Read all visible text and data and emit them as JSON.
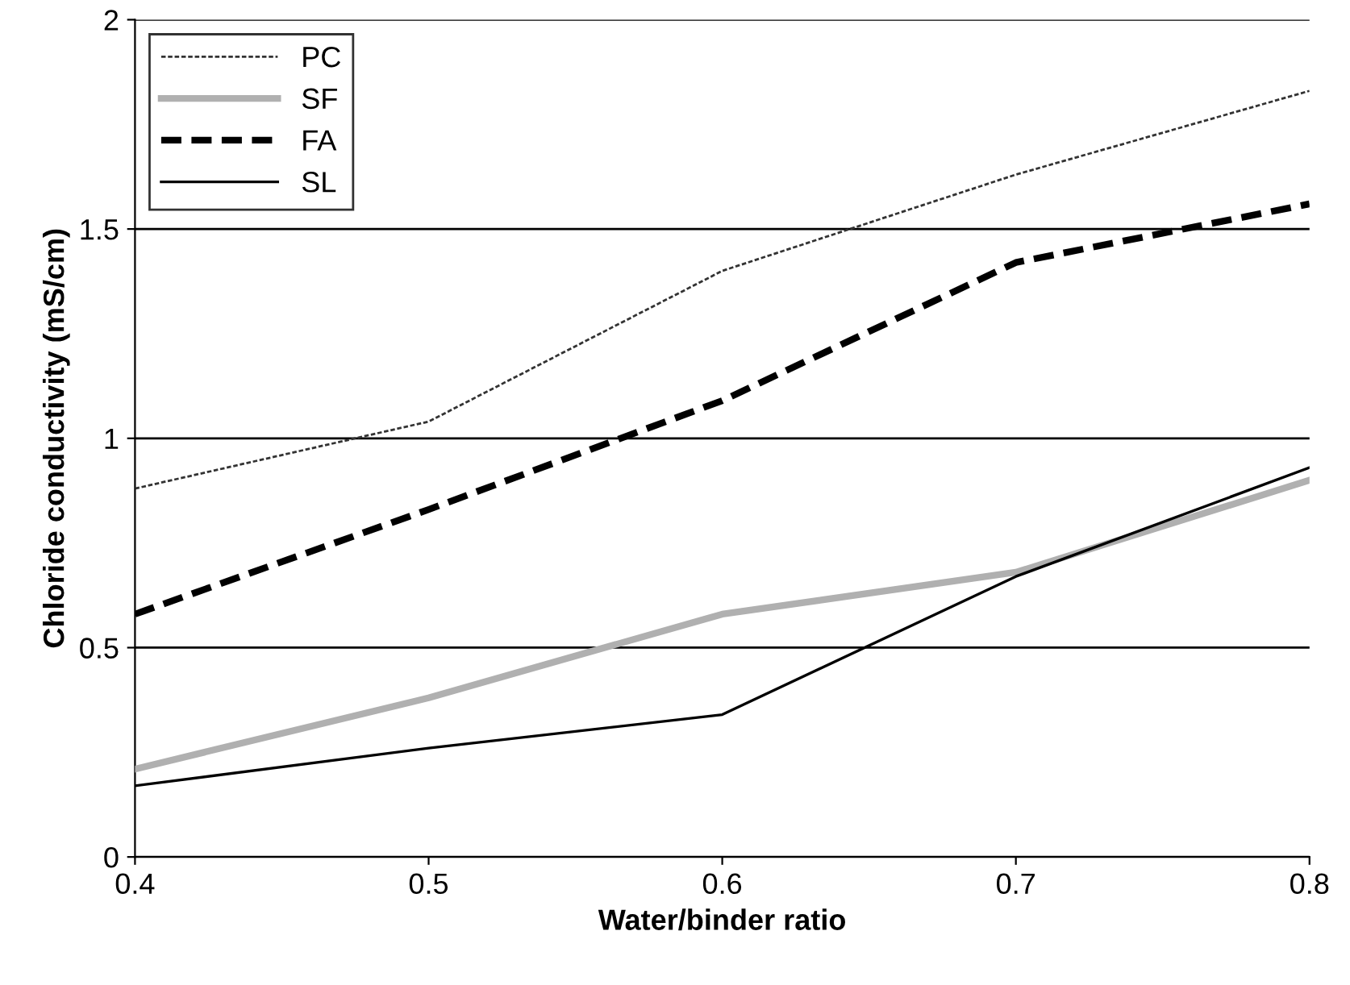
{
  "chart_data": {
    "type": "line",
    "xlabel": "Water/binder ratio",
    "ylabel": "Chloride conductivity (mS/cm)",
    "x": [
      0.4,
      0.5,
      0.6,
      0.7,
      0.8
    ],
    "series": [
      {
        "name": "PC",
        "color": "#333333",
        "values": [
          0.88,
          1.04,
          1.4,
          1.63,
          1.83
        ],
        "line_style": "dotted"
      },
      {
        "name": "SF",
        "color": "#b0b0b0",
        "values": [
          0.21,
          0.38,
          0.58,
          0.68,
          0.9
        ],
        "line_style": "solid"
      },
      {
        "name": "FA",
        "color": "#000000",
        "values": [
          0.58,
          0.83,
          1.09,
          1.42,
          1.56
        ],
        "line_style": "dashed"
      },
      {
        "name": "SL",
        "color": "#000000",
        "values": [
          0.17,
          0.26,
          0.34,
          0.67,
          0.93
        ],
        "line_style": "solid"
      }
    ],
    "xlim": [
      0.4,
      0.8
    ],
    "xticks": [
      0.4,
      0.5,
      0.6,
      0.7,
      0.8
    ],
    "ylim": [
      0,
      2
    ],
    "yticks": [
      0,
      0.5,
      1,
      1.5,
      2
    ],
    "grid": "y",
    "legend": "top left",
    "marker": "none"
  }
}
